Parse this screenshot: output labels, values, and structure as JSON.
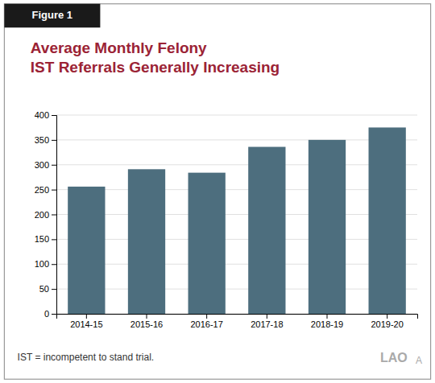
{
  "chart_data": {
    "type": "bar",
    "title": "Average Monthly Felony",
    "subtitle": "IST Referrals Generally Increasing",
    "annotations": [
      "Figure 1",
      "IST = incompetent to stand trial.",
      "LAO",
      "A"
    ],
    "categories": [
      "2014-15",
      "2015-16",
      "2016-17",
      "2017-18",
      "2018-19",
      "2019-20"
    ],
    "values": [
      256,
      291,
      284,
      336,
      350,
      375
    ],
    "color": "#4d6e7e",
    "ylim": [
      0,
      400
    ],
    "yticks": [
      0,
      50,
      100,
      150,
      200,
      250,
      300,
      350,
      400
    ],
    "grid": true
  }
}
